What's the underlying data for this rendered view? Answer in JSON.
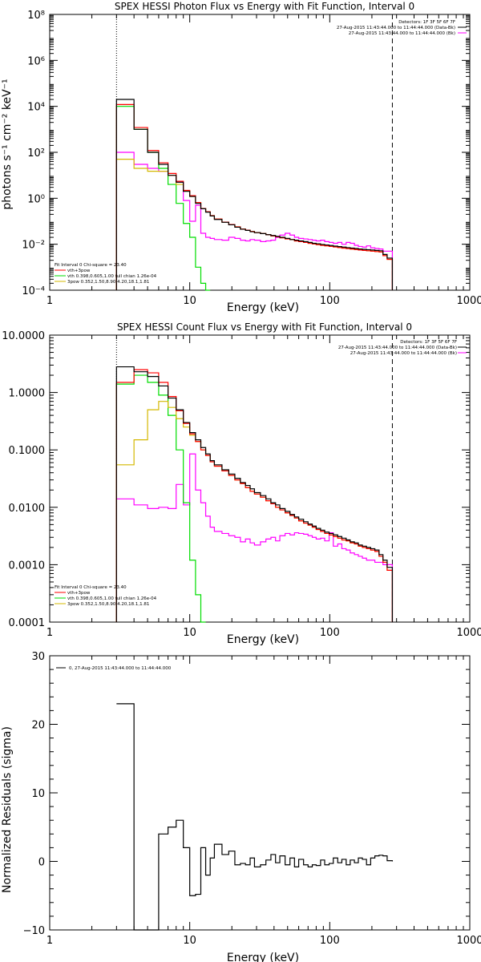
{
  "colors": {
    "data": "#000000",
    "total": "#ff0000",
    "thermal": "#00dd00",
    "power_law": "#d4b800",
    "background": "#ff00ff"
  },
  "chart_data": [
    {
      "type": "line",
      "title": "SPEX HESSI Photon Flux vs Energy with Fit Function, Interval 0",
      "xlabel": "Energy (keV)",
      "ylabel": "photons s⁻¹ cm⁻² keV⁻¹",
      "xscale": "log",
      "yscale": "log",
      "xlim": [
        1,
        1000
      ],
      "ylim": [
        0.0001,
        100000000
      ],
      "x_ticks": [
        "1",
        "10",
        "100",
        "1000"
      ],
      "y_ticks": [
        "10⁻⁴",
        "10⁻²",
        "10⁰",
        "10²",
        "10⁴",
        "10⁶",
        "10⁸"
      ],
      "vlines": [
        3,
        280
      ],
      "detector_lines": [
        "Detectors: 1F 3F 5F 6F 7F",
        "27-Aug-2015 11:43:44.000 to 11:44:44.000 (Data-Bk)",
        "27-Aug-2015 11:43:44.000 to 11:44:44.000 (Bk)"
      ],
      "legend": [
        "Fit Interval 0   Chi-square = 23.40",
        "vth+3pow",
        "vth 0.398,0.605,1.00  full chian 1.26e-04",
        "3pow 0.352,1.50,8.90,4.20,18.1,1.81"
      ],
      "edges": [
        3,
        4,
        5,
        6,
        7,
        8,
        9,
        10,
        11,
        12,
        13,
        14,
        15,
        17,
        19,
        21,
        23,
        25,
        27,
        29,
        32,
        35,
        38,
        41,
        44,
        48,
        52,
        56,
        60,
        65,
        70,
        75,
        80,
        86,
        92,
        99,
        106,
        114,
        122,
        131,
        140,
        150,
        160,
        171,
        183,
        196,
        210,
        225,
        240,
        257,
        280
      ],
      "series": [
        {
          "name": "Data-Bk",
          "color": "#000000",
          "values": [
            20000,
            1000,
            100,
            30,
            10,
            5,
            2,
            1.2,
            0.6,
            0.35,
            0.25,
            0.17,
            0.12,
            0.09,
            0.07,
            0.055,
            0.045,
            0.04,
            0.035,
            0.032,
            0.029,
            0.026,
            0.024,
            0.022,
            0.02,
            0.018,
            0.016,
            0.015,
            0.014,
            0.013,
            0.012,
            0.011,
            0.0105,
            0.0098,
            0.0093,
            0.0088,
            0.0083,
            0.0079,
            0.0075,
            0.0071,
            0.0068,
            0.0065,
            0.0062,
            0.006,
            0.0058,
            0.0056,
            0.0054,
            0.0052,
            0.0036,
            0.0025
          ]
        },
        {
          "name": "vth+3pow",
          "color": "#ff0000",
          "values": [
            12000,
            1200,
            120,
            35,
            12,
            5.5,
            2.2,
            1.3,
            0.65,
            0.36,
            0.26,
            0.175,
            0.125,
            0.092,
            0.072,
            0.057,
            0.046,
            0.041,
            0.036,
            0.032,
            0.029,
            0.026,
            0.023,
            0.021,
            0.019,
            0.017,
            0.016,
            0.014,
            0.013,
            0.012,
            0.011,
            0.0103,
            0.0096,
            0.009,
            0.0085,
            0.008,
            0.0076,
            0.0072,
            0.0068,
            0.0065,
            0.0062,
            0.0059,
            0.0056,
            0.0054,
            0.0052,
            0.005,
            0.0048,
            0.0046,
            0.0032,
            0.0022
          ]
        },
        {
          "name": "vth",
          "color": "#00dd00",
          "values": [
            10000,
            1000,
            100,
            20,
            4,
            0.6,
            0.08,
            0.02,
            0.001,
            0.0002,
            4e-05
          ]
        },
        {
          "name": "3pow",
          "color": "#d4b800",
          "values": [
            50,
            20,
            15,
            15,
            10,
            4,
            2.1,
            1.2,
            0.65,
            0.36,
            0.26,
            0.175,
            0.125,
            0.092,
            0.072,
            0.057,
            0.046,
            0.041,
            0.036,
            0.032,
            0.029,
            0.026,
            0.023,
            0.021,
            0.019,
            0.017,
            0.016,
            0.014,
            0.013,
            0.012,
            0.011,
            0.0103,
            0.0096,
            0.009,
            0.0085,
            0.008,
            0.0076,
            0.0072,
            0.0068,
            0.0065,
            0.0062,
            0.0059,
            0.0056,
            0.0054,
            0.0052,
            0.005,
            0.0048,
            0.0046,
            0.0032,
            0.0022
          ]
        },
        {
          "name": "Bk",
          "color": "#ff00ff",
          "values": [
            100,
            30,
            20,
            15,
            10,
            5,
            0.8,
            0.1,
            0.5,
            0.03,
            0.02,
            0.018,
            0.016,
            0.015,
            0.02,
            0.018,
            0.015,
            0.014,
            0.016,
            0.015,
            0.013,
            0.014,
            0.015,
            0.02,
            0.025,
            0.03,
            0.025,
            0.02,
            0.018,
            0.017,
            0.016,
            0.015,
            0.014,
            0.015,
            0.013,
            0.012,
            0.011,
            0.012,
            0.01,
            0.012,
            0.011,
            0.009,
            0.008,
            0.0075,
            0.0085,
            0.007,
            0.0065,
            0.0062,
            0.005,
            0.005
          ]
        }
      ]
    },
    {
      "type": "line",
      "title": "SPEX HESSI Count Flux vs Energy with Fit Function, Interval 0",
      "xlabel": "Energy (keV)",
      "ylabel": "",
      "xscale": "log",
      "yscale": "log",
      "xlim": [
        1,
        1000
      ],
      "ylim": [
        0.0001,
        10
      ],
      "x_ticks": [
        "1",
        "10",
        "100",
        "1000"
      ],
      "y_ticks": [
        "0.0001",
        "0.0010",
        "0.0100",
        "0.1000",
        "1.0000",
        "10.0000"
      ],
      "vlines": [
        3,
        280
      ],
      "detector_lines": [
        "Detectors: 1F 3F 5F 6F 7F",
        "27-Aug-2015 11:43:44.000 to 11:44:44.000 (Data-Bk)",
        "27-Aug-2015 11:43:44.000 to 11:44:44.000 (Bk)"
      ],
      "legend": [
        "Fit Interval 0   Chi-square = 23.40",
        "vth+3pow",
        "vth 0.398,0.605,1.00  full chian 1.26e-04",
        "3pow 0.352,1.50,8.90,4.20,18.1,1.81"
      ],
      "edges": [
        3,
        4,
        5,
        6,
        7,
        8,
        9,
        10,
        11,
        12,
        13,
        14,
        15,
        17,
        19,
        21,
        23,
        25,
        27,
        29,
        32,
        35,
        38,
        41,
        44,
        48,
        52,
        56,
        60,
        65,
        70,
        75,
        80,
        86,
        92,
        99,
        106,
        114,
        122,
        131,
        140,
        150,
        160,
        171,
        183,
        196,
        210,
        225,
        240,
        257,
        280
      ],
      "series": [
        {
          "name": "Data-Bk",
          "color": "#000000",
          "values": [
            2.8,
            2.3,
            1.9,
            1.3,
            0.8,
            0.5,
            0.3,
            0.2,
            0.15,
            0.11,
            0.085,
            0.065,
            0.055,
            0.045,
            0.038,
            0.032,
            0.027,
            0.024,
            0.021,
            0.018,
            0.016,
            0.014,
            0.012,
            0.011,
            0.0095,
            0.0085,
            0.0075,
            0.0068,
            0.0062,
            0.0056,
            0.0051,
            0.0047,
            0.0043,
            0.004,
            0.0037,
            0.0035,
            0.0033,
            0.0031,
            0.0029,
            0.0027,
            0.0025,
            0.0024,
            0.0022,
            0.0021,
            0.002,
            0.0019,
            0.0018,
            0.0015,
            0.0012,
            0.0009
          ]
        },
        {
          "name": "vth+3pow",
          "color": "#ff0000",
          "values": [
            1.5,
            2.5,
            2.2,
            1.5,
            0.85,
            0.48,
            0.29,
            0.19,
            0.14,
            0.1,
            0.08,
            0.062,
            0.052,
            0.043,
            0.036,
            0.03,
            0.026,
            0.022,
            0.019,
            0.017,
            0.015,
            0.013,
            0.0115,
            0.01,
            0.009,
            0.008,
            0.0072,
            0.0065,
            0.0058,
            0.0053,
            0.0049,
            0.0045,
            0.0041,
            0.0038,
            0.0035,
            0.0033,
            0.0031,
            0.0029,
            0.0027,
            0.0026,
            0.0024,
            0.0023,
            0.0021,
            0.002,
            0.0019,
            0.0018,
            0.0017,
            0.0014,
            0.0011,
            0.0008
          ]
        },
        {
          "name": "vth",
          "color": "#00dd00",
          "values": [
            1.4,
            2.0,
            1.5,
            0.9,
            0.4,
            0.1,
            0.012,
            0.0012,
            0.0003,
            6e-05
          ]
        },
        {
          "name": "3pow",
          "color": "#d4b800",
          "values": [
            0.055,
            0.15,
            0.5,
            0.7,
            0.55,
            0.35,
            0.25,
            0.18,
            0.14,
            0.1,
            0.08,
            0.062,
            0.052,
            0.043,
            0.036,
            0.03,
            0.026,
            0.022,
            0.019,
            0.017,
            0.015,
            0.013,
            0.0115,
            0.01,
            0.009,
            0.008,
            0.0072,
            0.0065,
            0.0058,
            0.0053,
            0.0049,
            0.0045,
            0.0041,
            0.0038,
            0.0035,
            0.0033,
            0.0031,
            0.0029,
            0.0027,
            0.0026,
            0.0024,
            0.0023,
            0.0021,
            0.002,
            0.0019,
            0.0018,
            0.0017,
            0.0014,
            0.0011,
            0.0008
          ]
        },
        {
          "name": "Bk",
          "color": "#ff00ff",
          "values": [
            0.014,
            0.011,
            0.0095,
            0.01,
            0.0095,
            0.025,
            0.011,
            0.085,
            0.02,
            0.012,
            0.007,
            0.0045,
            0.0038,
            0.0035,
            0.0032,
            0.003,
            0.0025,
            0.0028,
            0.0024,
            0.0022,
            0.0025,
            0.0028,
            0.003,
            0.0026,
            0.0032,
            0.0035,
            0.0033,
            0.0036,
            0.0035,
            0.0034,
            0.0032,
            0.003,
            0.0028,
            0.0029,
            0.0026,
            0.0036,
            0.0021,
            0.0023,
            0.0019,
            0.0018,
            0.0016,
            0.0015,
            0.0014,
            0.0013,
            0.0012,
            0.0012,
            0.0011,
            0.0011,
            0.001,
            0.001
          ]
        }
      ]
    },
    {
      "type": "line",
      "title": "",
      "xlabel": "Energy (keV)",
      "ylabel": "Normalized Residuals (sigma)",
      "xscale": "log",
      "yscale": "linear",
      "xlim": [
        1,
        1000
      ],
      "ylim": [
        -10,
        30
      ],
      "x_ticks": [
        "1",
        "10",
        "100",
        "1000"
      ],
      "y_ticks": [
        "−10",
        "0",
        "10",
        "20",
        "30"
      ],
      "legend": [
        "0, 27-Aug-2015 11:43:44.000 to 11:44:44.000"
      ],
      "edges": [
        3,
        4,
        5,
        6,
        7,
        8,
        9,
        10,
        11,
        12,
        13,
        14,
        15,
        17,
        19,
        21,
        23,
        25,
        27,
        29,
        32,
        35,
        38,
        41,
        44,
        48,
        52,
        56,
        60,
        65,
        70,
        75,
        80,
        86,
        92,
        99,
        106,
        114,
        122,
        131,
        140,
        150,
        160,
        171,
        183,
        196,
        210,
        225,
        240,
        257,
        280
      ],
      "series": [
        {
          "name": "residuals",
          "color": "#000000",
          "values": [
            23,
            -10.5,
            -10.5,
            4,
            5,
            6,
            2,
            -5,
            -4.8,
            2,
            -2,
            0.5,
            2.5,
            1,
            1.5,
            -0.5,
            -0.3,
            -0.5,
            0.5,
            -0.8,
            -0.5,
            0.2,
            1,
            -0.2,
            0.8,
            -0.5,
            0.5,
            -0.8,
            0.3,
            -0.5,
            -0.8,
            -0.5,
            -0.6,
            0.2,
            -0.5,
            -0.3,
            0.5,
            -0.2,
            0.3,
            -0.5,
            0.2,
            -0.2,
            0.5,
            0.3,
            -0.5,
            0.5,
            0.8,
            0.9,
            0.8,
            0.1
          ]
        }
      ]
    }
  ]
}
